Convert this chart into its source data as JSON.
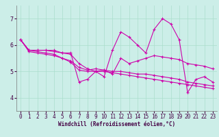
{
  "title": "",
  "xlabel": "Windchill (Refroidissement éolien,°C)",
  "ylabel": "",
  "background_color": "#cceee8",
  "line_color": "#cc00aa",
  "grid_color": "#aaddcc",
  "xlim": [
    -0.5,
    23.5
  ],
  "ylim": [
    3.5,
    7.5
  ],
  "yticks": [
    4,
    5,
    6,
    7
  ],
  "xticks": [
    0,
    1,
    2,
    3,
    4,
    5,
    6,
    7,
    8,
    9,
    10,
    11,
    12,
    13,
    14,
    15,
    16,
    17,
    18,
    19,
    20,
    21,
    22,
    23
  ],
  "series": [
    [
      6.2,
      5.8,
      5.8,
      5.8,
      5.8,
      5.7,
      5.7,
      4.6,
      4.7,
      5.0,
      4.8,
      5.8,
      6.5,
      6.3,
      6.0,
      5.7,
      6.6,
      7.0,
      6.8,
      6.2,
      4.2,
      4.7,
      4.8,
      4.6
    ],
    [
      6.2,
      5.8,
      5.8,
      5.8,
      5.75,
      5.7,
      5.65,
      5.3,
      5.1,
      5.0,
      5.05,
      4.9,
      5.5,
      5.3,
      5.4,
      5.5,
      5.6,
      5.55,
      5.5,
      5.45,
      5.3,
      5.25,
      5.2,
      5.1
    ],
    [
      6.2,
      5.8,
      5.75,
      5.7,
      5.65,
      5.5,
      5.4,
      5.15,
      5.05,
      5.1,
      5.05,
      5.0,
      5.0,
      4.95,
      4.9,
      4.9,
      4.85,
      4.8,
      4.75,
      4.7,
      4.6,
      4.55,
      4.5,
      4.45
    ],
    [
      6.2,
      5.75,
      5.7,
      5.65,
      5.6,
      5.5,
      5.35,
      5.05,
      5.0,
      5.0,
      5.0,
      4.95,
      4.9,
      4.85,
      4.8,
      4.75,
      4.7,
      4.65,
      4.6,
      4.55,
      4.5,
      4.45,
      4.4,
      4.35
    ]
  ],
  "xlabel_fontsize": 5.5,
  "tick_fontsize": 5.5,
  "linewidth": 0.8,
  "markersize": 3.5
}
